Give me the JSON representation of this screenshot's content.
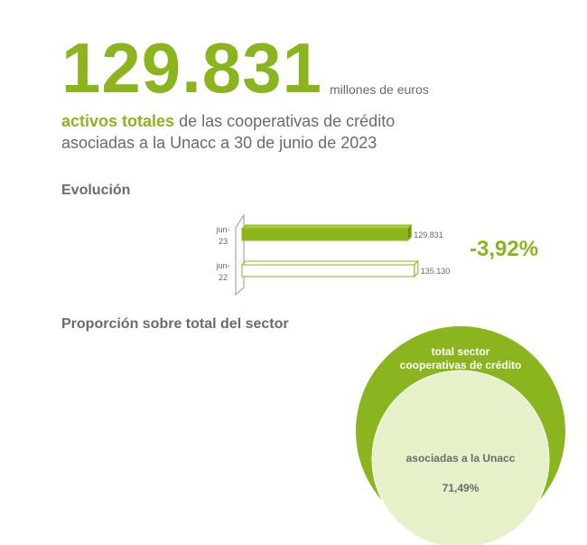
{
  "headline": {
    "value": "129.831",
    "unit": "millones de euros",
    "accent": "activos totales",
    "rest1": " de las cooperativas de crédito",
    "line2": "asociadas a la Unacc a 30 de junio de 2023"
  },
  "evolution": {
    "title": "Evolución",
    "change": "-3,92%"
  },
  "proportion": {
    "title": "Proporción sobre total del sector",
    "outer_label_line1": "total sector",
    "outer_label_line2": "cooperativas de crédito",
    "inner_label": "asociadas a la Unacc",
    "inner_value": "71,49%"
  },
  "colors": {
    "accent": "#8ab51e",
    "light": "#e6f0c9",
    "text": "#6b6b6b"
  },
  "chart_data": [
    {
      "type": "bar",
      "orientation": "horizontal",
      "categories": [
        "jun-23",
        "jun-22"
      ],
      "category_lines": [
        [
          "jun-",
          "23"
        ],
        [
          "jun-",
          "22"
        ]
      ],
      "values": [
        129831,
        135130
      ],
      "value_labels": [
        "129.831",
        "135.130"
      ],
      "fills": [
        "#8ab51e",
        "#ffffff"
      ]
    },
    {
      "type": "pie",
      "categories": [
        "asociadas a la Unacc",
        "total sector cooperativas de crédito"
      ],
      "values": [
        71.49,
        100
      ]
    }
  ]
}
